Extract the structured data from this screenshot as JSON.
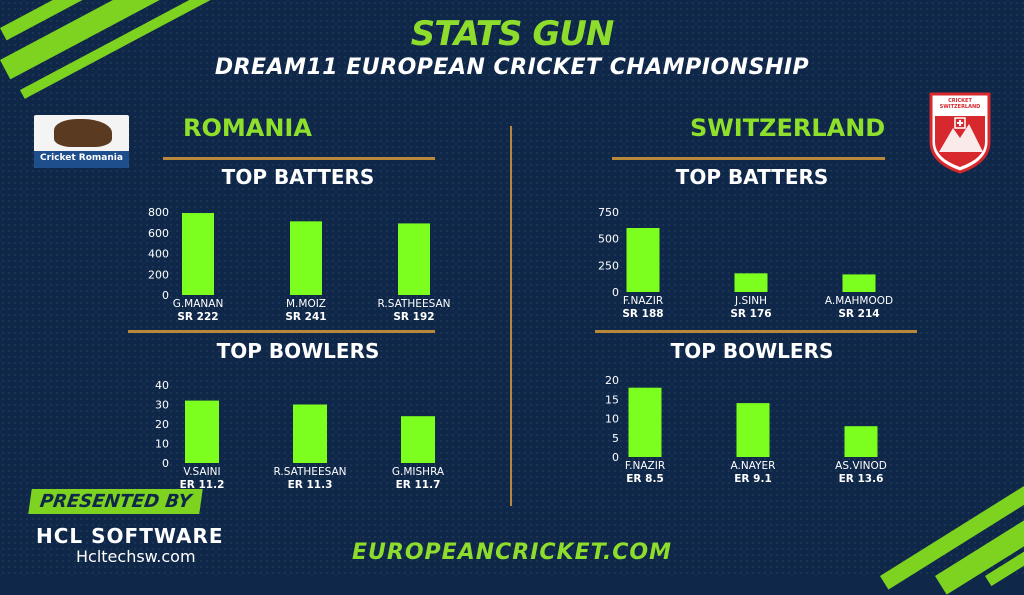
{
  "header": {
    "title": "STATS GUN",
    "subtitle": "DREAM11 EUROPEAN CRICKET CHAMPIONSHIP"
  },
  "teams": [
    {
      "name": "ROMANIA",
      "logo_text": "Cricket Romania",
      "batters_title": "TOP BATTERS",
      "bowlers_title": "TOP BOWLERS"
    },
    {
      "name": "SWITZERLAND",
      "logo_text": "CRICKET SWITZERLAND",
      "batters_title": "TOP BATTERS",
      "bowlers_title": "TOP BOWLERS"
    }
  ],
  "chart_data": [
    {
      "type": "bar",
      "title": "TOP BATTERS",
      "team": "ROMANIA",
      "categories": [
        "G.MANAN",
        "M.MOIZ",
        "R.SATHEESAN"
      ],
      "values": [
        790,
        710,
        690
      ],
      "rates": [
        "SR 222",
        "SR 241",
        "SR 192"
      ],
      "ylim": [
        0,
        800
      ],
      "yticks": [
        0,
        200,
        400,
        600,
        800
      ]
    },
    {
      "type": "bar",
      "title": "TOP BOWLERS",
      "team": "ROMANIA",
      "categories": [
        "V.SAINI",
        "R.SATHEESAN",
        "G.MISHRA"
      ],
      "values": [
        32,
        30,
        24
      ],
      "rates": [
        "ER 11.2",
        "ER 11.3",
        "ER 11.7"
      ],
      "ylim": [
        0,
        40
      ],
      "yticks": [
        0,
        10,
        20,
        30,
        40
      ]
    },
    {
      "type": "bar",
      "title": "TOP BATTERS",
      "team": "SWITZERLAND",
      "categories": [
        "F.NAZIR",
        "J.SINH",
        "A.MAHMOOD"
      ],
      "values": [
        600,
        175,
        165
      ],
      "rates": [
        "SR 188",
        "SR 176",
        "SR 214"
      ],
      "ylim": [
        0,
        750
      ],
      "yticks": [
        0,
        250,
        500,
        750
      ]
    },
    {
      "type": "bar",
      "title": "TOP BOWLERS",
      "team": "SWITZERLAND",
      "categories": [
        "F.NAZIR",
        "A.NAYER",
        "AS.VINOD"
      ],
      "values": [
        18,
        14,
        8
      ],
      "rates": [
        "ER 8.5",
        "ER 9.1",
        "ER 13.6"
      ],
      "ylim": [
        0,
        20
      ],
      "yticks": [
        0,
        5,
        10,
        15,
        20
      ]
    }
  ],
  "colors": {
    "bar": "#7cff1f",
    "accent": "#8edc2c",
    "background": "#0f2748",
    "rule": "#b8893a"
  },
  "footer": {
    "presented_by": "PRESENTED BY",
    "sponsor": "HCL SOFTWARE",
    "sponsor_url": "Hcltechsw.com",
    "site": "EUROPEANCRICKET.COM"
  }
}
